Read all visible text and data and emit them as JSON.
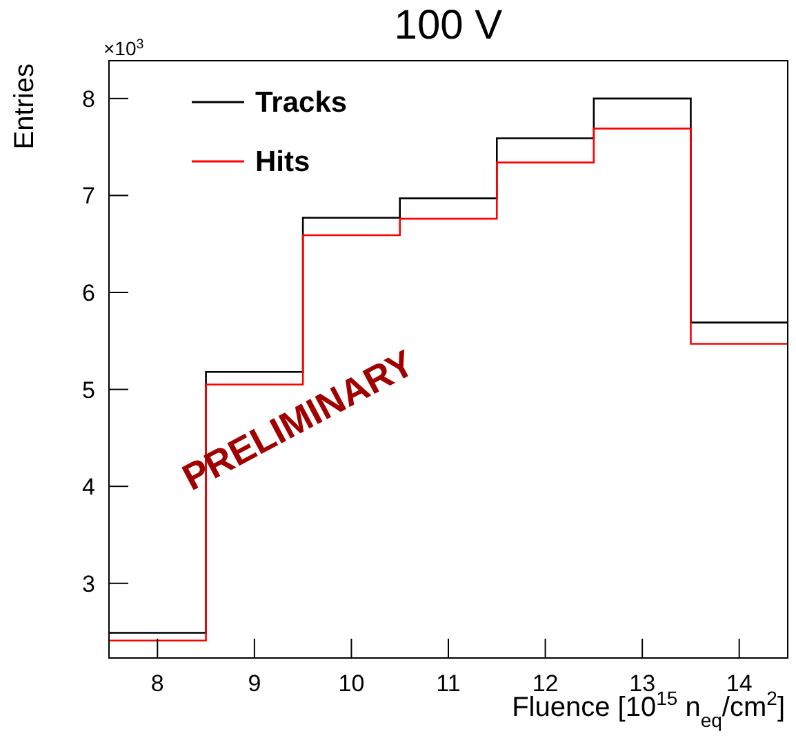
{
  "chart_data": {
    "type": "histogram",
    "title": "100 V",
    "xlabel": "Fluence [10$^{15}$ n$_{eq}$/cm$^{2}$]",
    "ylabel": "Entries",
    "bins": [
      7.5,
      8.5,
      9.5,
      10.5,
      11.5,
      12.5,
      13.5,
      14.5
    ],
    "series": [
      {
        "name": "Tracks",
        "color": "#000000",
        "values": [
          2.49,
          5.18,
          6.77,
          6.97,
          7.59,
          8.0,
          5.69
        ]
      },
      {
        "name": "Hits",
        "color": "#ff0000",
        "values": [
          2.41,
          5.05,
          6.59,
          6.76,
          7.34,
          7.69,
          5.47
        ]
      }
    ],
    "xlim": [
      7.5,
      14.5
    ],
    "xticks": [
      8,
      9,
      10,
      11,
      12,
      13,
      14
    ],
    "ylim": [
      2.23,
      8.39
    ],
    "yticks": [
      3,
      4,
      5,
      6,
      7,
      8
    ],
    "annotations": [
      "×10$^{3}$",
      "PRELIMINARY"
    ],
    "legend": "top left",
    "grid": false
  }
}
